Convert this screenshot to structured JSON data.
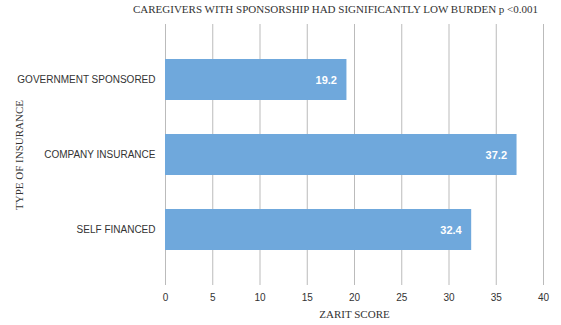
{
  "chart_data": {
    "type": "bar",
    "orientation": "horizontal",
    "title": "CAREGIVERS WITH SPONSORSHIP HAD SIGNIFICANTLY LOW BURDEN p <0.001",
    "x_label": "ZARIT SCORE",
    "y_label": "TYPE OF INSURANCE",
    "categories": [
      "GOVERNMENT SPONSORED",
      "COMPANY INSURANCE",
      "SELF FINANCED"
    ],
    "values": [
      19.2,
      37.2,
      32.4
    ],
    "color": "#6fa8dc",
    "xlim": [
      0,
      40
    ],
    "xticks": [
      0,
      5,
      10,
      15,
      20,
      25,
      30,
      35,
      40
    ],
    "grid": true,
    "data_labels": true
  }
}
